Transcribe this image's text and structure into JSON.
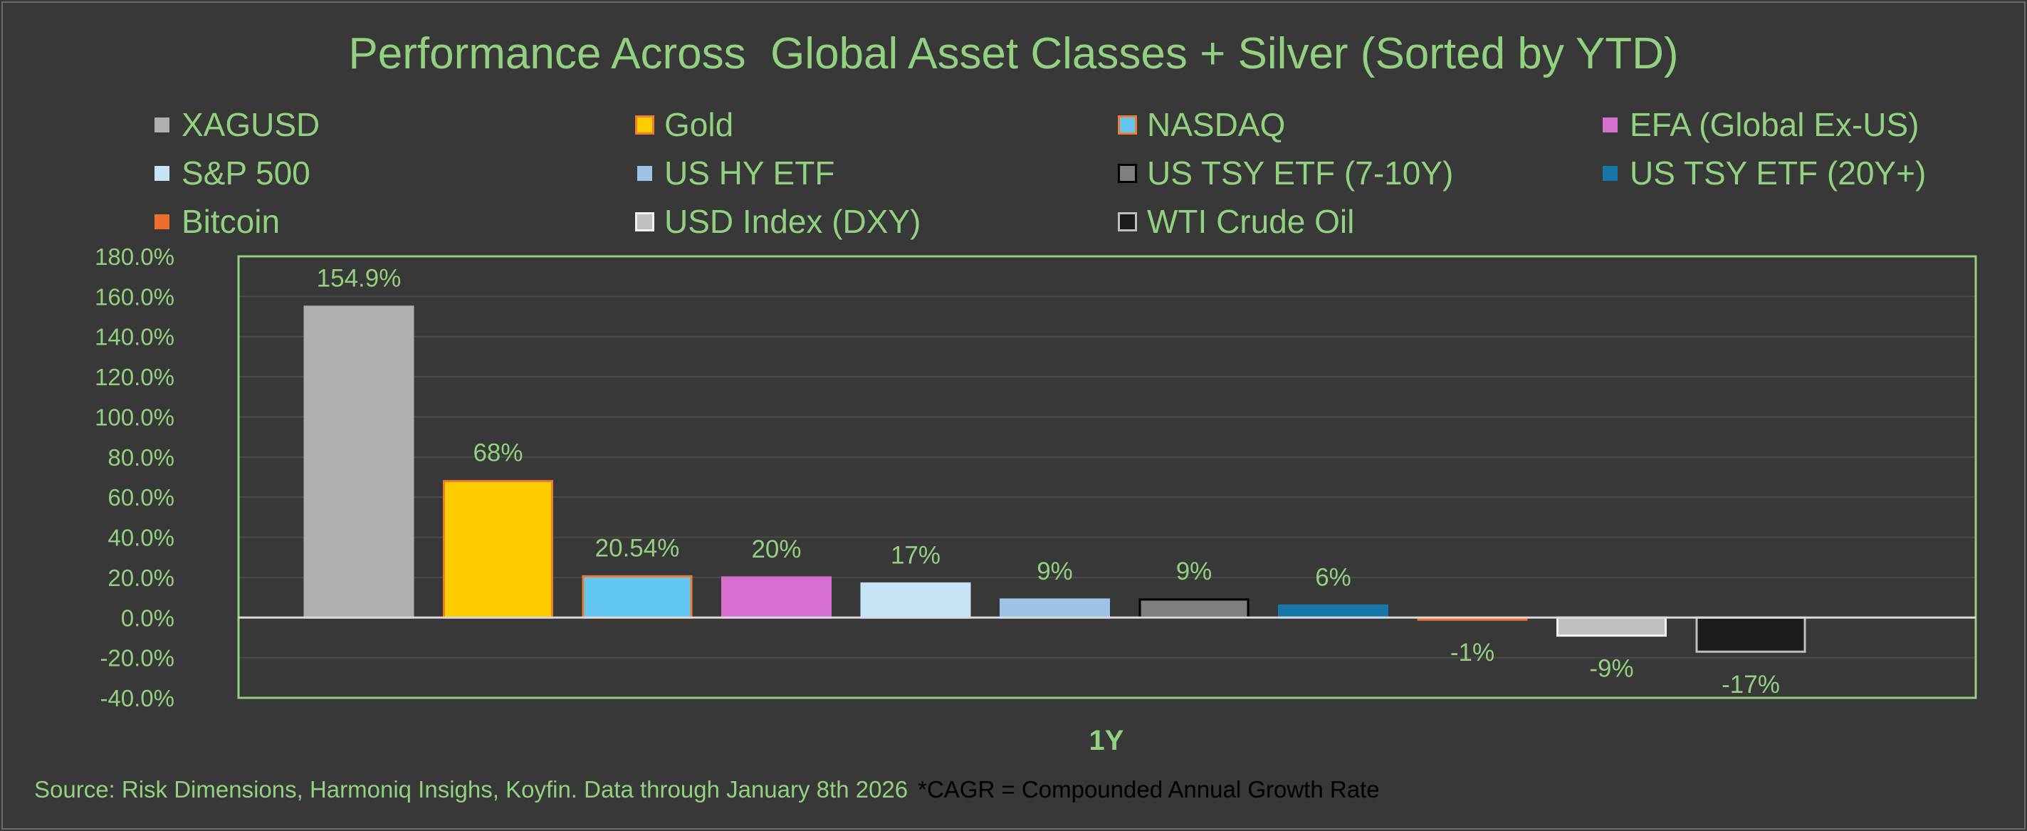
{
  "colors": {
    "background": "#383838",
    "text": "#92d17f",
    "plot_border": "#92d17f",
    "gridline": "#4a4a4a",
    "zero_line": "#d9d9d9"
  },
  "legend": [
    {
      "label": "XAGUSD",
      "color": "#b0b0b0",
      "border": "#383838"
    },
    {
      "label": "Gold",
      "color": "#ffcc00",
      "border": "#ed7d31"
    },
    {
      "label": "NASDAQ",
      "color": "#62c8f2",
      "border": "#ed7d31"
    },
    {
      "label": "EFA (Global Ex-US)",
      "color": "#d66fcf",
      "border": "#383838"
    },
    {
      "label": "S&P 500",
      "color": "#c6e4f6",
      "border": "#383838"
    },
    {
      "label": "US HY ETF",
      "color": "#9dc3e6",
      "border": "#383838"
    },
    {
      "label": "US TSY ETF (7-10Y)",
      "color": "#7f7f7f",
      "border": "#000000"
    },
    {
      "label": "US TSY ETF (20Y+)",
      "color": "#1777a8",
      "border": "#383838"
    },
    {
      "label": "Bitcoin",
      "color": "#f06e2c",
      "border": "#383838"
    },
    {
      "label": "USD Index (DXY)",
      "color": "#c0c0c0",
      "border": "#f2f2f2"
    },
    {
      "label": "WTI Crude Oil",
      "color": "#1c1c1c",
      "border": "#bfbfbf"
    }
  ],
  "chart_data": {
    "type": "bar",
    "title": "Performance Across  Global Asset Classes + Silver (Sorted by YTD)",
    "xlabel": "1Y",
    "ylabel": "",
    "ylim": [
      -40,
      180
    ],
    "yticks": [
      180,
      160,
      140,
      120,
      100,
      80,
      60,
      40,
      20,
      0,
      -20,
      -40
    ],
    "ytick_labels": [
      "180.0%",
      "160.0%",
      "140.0%",
      "120.0%",
      "100.0%",
      "80.0%",
      "60.0%",
      "40.0%",
      "20.0%",
      "0.0%",
      "-20.0%",
      "-40.0%"
    ],
    "categories": [
      "1Y"
    ],
    "series": [
      {
        "name": "XAGUSD",
        "values": [
          154.9
        ],
        "label": "154.9%",
        "color": "#b0b0b0",
        "border": "#b0b0b0"
      },
      {
        "name": "Gold",
        "values": [
          68
        ],
        "label": "68%",
        "color": "#ffcc00",
        "border": "#ed7d31"
      },
      {
        "name": "NASDAQ",
        "values": [
          20.54
        ],
        "label": "20.54%",
        "color": "#62c8f2",
        "border": "#ed7d31"
      },
      {
        "name": "EFA (Global Ex-US)",
        "values": [
          20
        ],
        "label": "20%",
        "color": "#d66fcf",
        "border": "#d66fcf"
      },
      {
        "name": "S&P 500",
        "values": [
          17
        ],
        "label": "17%",
        "color": "#c6e4f6",
        "border": "#c6e4f6"
      },
      {
        "name": "US HY ETF",
        "values": [
          9
        ],
        "label": "9%",
        "color": "#9dc3e6",
        "border": "#9dc3e6"
      },
      {
        "name": "US TSY ETF (7-10Y)",
        "values": [
          9
        ],
        "label": "9%",
        "color": "#7f7f7f",
        "border": "#000000"
      },
      {
        "name": "US TSY ETF (20Y+)",
        "values": [
          6
        ],
        "label": "6%",
        "color": "#1777a8",
        "border": "#1777a8"
      },
      {
        "name": "Bitcoin",
        "values": [
          -1
        ],
        "label": "-1%",
        "color": "#f06e2c",
        "border": "#f06e2c"
      },
      {
        "name": "USD Index (DXY)",
        "values": [
          -9
        ],
        "label": "-9%",
        "color": "#c0c0c0",
        "border": "#f2f2f2"
      },
      {
        "name": "WTI Crude Oil",
        "values": [
          -17
        ],
        "label": "-17%",
        "color": "#1c1c1c",
        "border": "#bfbfbf"
      }
    ],
    "legend_position": "top"
  },
  "footer": {
    "source": "Source: Risk Dimensions, Harmoniq Insighs, Koyfin. Data through January 8th 2026",
    "note": "*CAGR = Compounded Annual Growth Rate"
  }
}
